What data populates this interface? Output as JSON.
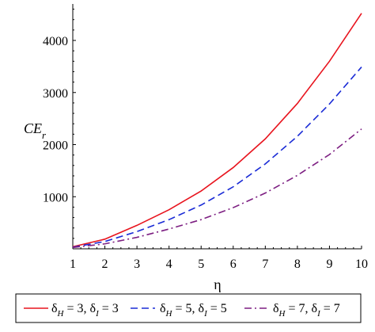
{
  "chart_data": {
    "type": "line",
    "xlabel": "η",
    "ylabel": {
      "main": "CE",
      "sub": "r"
    },
    "xlim": [
      1,
      10
    ],
    "ylim": [
      0,
      4700
    ],
    "xticks": [
      1,
      2,
      3,
      4,
      5,
      6,
      7,
      8,
      9,
      10
    ],
    "yticks": [
      1000,
      2000,
      3000,
      4000
    ],
    "grid": false,
    "legend_position": "bottom",
    "x": [
      1,
      2,
      3,
      4,
      5,
      6,
      7,
      8,
      9,
      10
    ],
    "series": [
      {
        "name": "δH = 3, δI = 3",
        "name_parts": {
          "d1": "δ",
          "s1": "H",
          "m1": " = 3, ",
          "d2": "δ",
          "s2": "I",
          "m2": " = 3"
        },
        "color": "#e8141e",
        "dash": "solid",
        "values": [
          40,
          185,
          450,
          750,
          1110,
          1560,
          2110,
          2790,
          3600,
          4520
        ]
      },
      {
        "name": "δH = 5, δI = 5",
        "name_parts": {
          "d1": "δ",
          "s1": "H",
          "m1": " = 5, ",
          "d2": "δ",
          "s2": "I",
          "m2": " = 5"
        },
        "color": "#1a2bd6",
        "dash": "dashed",
        "values": [
          30,
          140,
          330,
          560,
          840,
          1190,
          1630,
          2160,
          2780,
          3490
        ]
      },
      {
        "name": "δH = 7, δI = 7",
        "name_parts": {
          "d1": "δ",
          "s1": "H",
          "m1": " = 7, ",
          "d2": "δ",
          "s2": "I",
          "m2": " = 7"
        },
        "color": "#7d1f82",
        "dash": "dashdot",
        "values": [
          25,
          95,
          220,
          380,
          560,
          790,
          1070,
          1410,
          1810,
          2300
        ]
      }
    ]
  }
}
